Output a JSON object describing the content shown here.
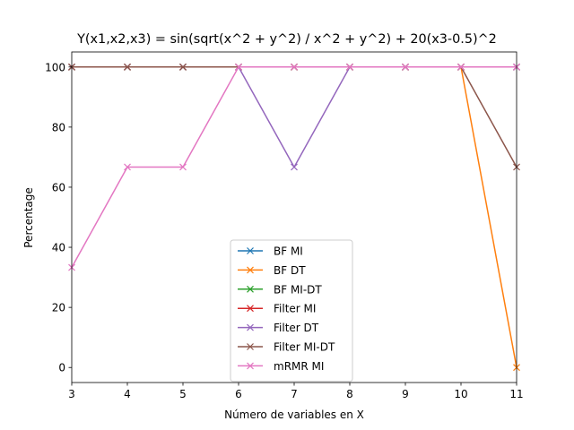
{
  "chart_data": {
    "type": "line",
    "title": "Y(x1,x2,x3) = sin(sqrt(x^2 + y^2) / x^2 + y^2) + 20(x3-0.5)^2",
    "xlabel": "Número de variables en X",
    "ylabel": "Percentage",
    "xlim": [
      3,
      11
    ],
    "ylim": [
      -5,
      105
    ],
    "x_ticks": [
      3,
      4,
      5,
      6,
      7,
      8,
      9,
      10,
      11
    ],
    "y_ticks": [
      0,
      20,
      40,
      60,
      80,
      100
    ],
    "grid": false,
    "legend_position": "bottom-center",
    "marker": "x",
    "x": [
      3,
      4,
      5,
      6,
      7,
      8,
      9,
      10,
      11
    ],
    "series": [
      {
        "name": "BF MI",
        "color": "#1f77b4",
        "values": [
          100,
          100,
          100,
          100,
          100,
          100,
          100,
          100,
          100
        ]
      },
      {
        "name": "BF DT",
        "color": "#ff7f0e",
        "values": [
          100,
          100,
          100,
          100,
          100,
          100,
          100,
          100,
          0
        ]
      },
      {
        "name": "BF MI-DT",
        "color": "#2ca02c",
        "values": [
          100,
          100,
          100,
          100,
          100,
          100,
          100,
          100,
          100
        ]
      },
      {
        "name": "Filter MI",
        "color": "#d62728",
        "values": [
          100,
          100,
          100,
          100,
          100,
          100,
          100,
          100,
          100
        ]
      },
      {
        "name": "Filter DT",
        "color": "#9467bd",
        "values": [
          100,
          100,
          100,
          100,
          66.7,
          100,
          100,
          100,
          100
        ]
      },
      {
        "name": "Filter MI-DT",
        "color": "#8c564b",
        "values": [
          100,
          100,
          100,
          100,
          100,
          100,
          100,
          100,
          66.7
        ]
      },
      {
        "name": "mRMR MI",
        "color": "#e377c2",
        "values": [
          33.3,
          66.7,
          66.7,
          100,
          100,
          100,
          100,
          100,
          100
        ]
      }
    ]
  }
}
